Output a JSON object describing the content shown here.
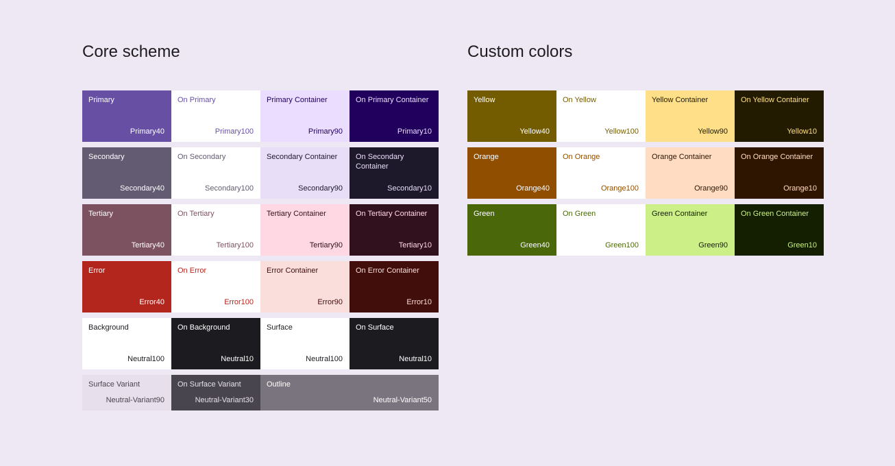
{
  "core": {
    "title": "Core scheme",
    "swatches": [
      {
        "name": "Primary",
        "tone": "Primary40",
        "bg": "#6750A4",
        "fg": "#FFFFFF"
      },
      {
        "name": "On Primary",
        "tone": "Primary100",
        "bg": "#FFFFFF",
        "fg": "#6750A4"
      },
      {
        "name": "Primary Container",
        "tone": "Primary90",
        "bg": "#EADDFF",
        "fg": "#21005D"
      },
      {
        "name": "On Primary Container",
        "tone": "Primary10",
        "bg": "#21005D",
        "fg": "#EADDFF"
      },
      {
        "name": "Secondary",
        "tone": "Secondary40",
        "bg": "#625B71",
        "fg": "#FFFFFF"
      },
      {
        "name": "On Secondary",
        "tone": "Secondary100",
        "bg": "#FFFFFF",
        "fg": "#625B71"
      },
      {
        "name": "Secondary Container",
        "tone": "Secondary90",
        "bg": "#E8DEF8",
        "fg": "#1D192B"
      },
      {
        "name": "On Secondary Container",
        "tone": "Secondary10",
        "bg": "#1D192B",
        "fg": "#E8DEF8"
      },
      {
        "name": "Tertiary",
        "tone": "Tertiary40",
        "bg": "#7D5260",
        "fg": "#FFFFFF"
      },
      {
        "name": "On Tertiary",
        "tone": "Tertiary100",
        "bg": "#FFFFFF",
        "fg": "#7D5260"
      },
      {
        "name": "Tertiary Container",
        "tone": "Tertiary90",
        "bg": "#FFD8E4",
        "fg": "#31111D"
      },
      {
        "name": "On Tertiary Container",
        "tone": "Tertiary10",
        "bg": "#31111D",
        "fg": "#FFD8E4"
      },
      {
        "name": "Error",
        "tone": "Error40",
        "bg": "#B3261E",
        "fg": "#FFFFFF"
      },
      {
        "name": "On Error",
        "tone": "Error100",
        "bg": "#FFFFFF",
        "fg": "#B3261E"
      },
      {
        "name": "Error Container",
        "tone": "Error90",
        "bg": "#F9DEDC",
        "fg": "#410E0B"
      },
      {
        "name": "On Error Container",
        "tone": "Error10",
        "bg": "#410E0B",
        "fg": "#F9DEDC"
      },
      {
        "name": "Background",
        "tone": "Neutral100",
        "bg": "#FFFFFF",
        "fg": "#1C1B1F"
      },
      {
        "name": "On Background",
        "tone": "Neutral10",
        "bg": "#1C1B1F",
        "fg": "#FFFFFF"
      },
      {
        "name": "Surface",
        "tone": "Neutral100",
        "bg": "#FFFFFF",
        "fg": "#1C1B1F"
      },
      {
        "name": "On Surface",
        "tone": "Neutral10",
        "bg": "#1C1B1F",
        "fg": "#FFFFFF"
      },
      {
        "name": "Surface Variant",
        "tone": "Neutral-Variant90",
        "bg": "#E7E0EC",
        "fg": "#49454F"
      },
      {
        "name": "On Surface Variant",
        "tone": "Neutral-Variant30",
        "bg": "#49454F",
        "fg": "#E7E0EC"
      },
      {
        "name": "Outline",
        "tone": "Neutral-Variant50",
        "bg": "#79747E",
        "fg": "#FFFFFF"
      }
    ]
  },
  "custom": {
    "title": "Custom colors",
    "swatches": [
      {
        "name": "Yellow",
        "tone": "Yellow40",
        "bg": "#735C00",
        "fg": "#FFFFFF"
      },
      {
        "name": "On Yellow",
        "tone": "Yellow100",
        "bg": "#FFFFFF",
        "fg": "#735C00"
      },
      {
        "name": "Yellow Container",
        "tone": "Yellow90",
        "bg": "#FFE088",
        "fg": "#231B00"
      },
      {
        "name": "On Yellow Container",
        "tone": "Yellow10",
        "bg": "#231B00",
        "fg": "#FFE088"
      },
      {
        "name": "Orange",
        "tone": "Orange40",
        "bg": "#8F4E00",
        "fg": "#FFFFFF"
      },
      {
        "name": "On Orange",
        "tone": "Orange100",
        "bg": "#FFFFFF",
        "fg": "#8F4E00"
      },
      {
        "name": "Orange Container",
        "tone": "Orange90",
        "bg": "#FFDCC2",
        "fg": "#2E1500"
      },
      {
        "name": "On Orange Container",
        "tone": "Orange10",
        "bg": "#2E1500",
        "fg": "#FFDCC2"
      },
      {
        "name": "Green",
        "tone": "Green40",
        "bg": "#4A6709",
        "fg": "#FFFFFF"
      },
      {
        "name": "On Green",
        "tone": "Green100",
        "bg": "#FFFFFF",
        "fg": "#4A6709"
      },
      {
        "name": "Green Container",
        "tone": "Green90",
        "bg": "#CCF087",
        "fg": "#131F00"
      },
      {
        "name": "On Green Container",
        "tone": "Green10",
        "bg": "#131F00",
        "fg": "#CCF087"
      }
    ]
  }
}
